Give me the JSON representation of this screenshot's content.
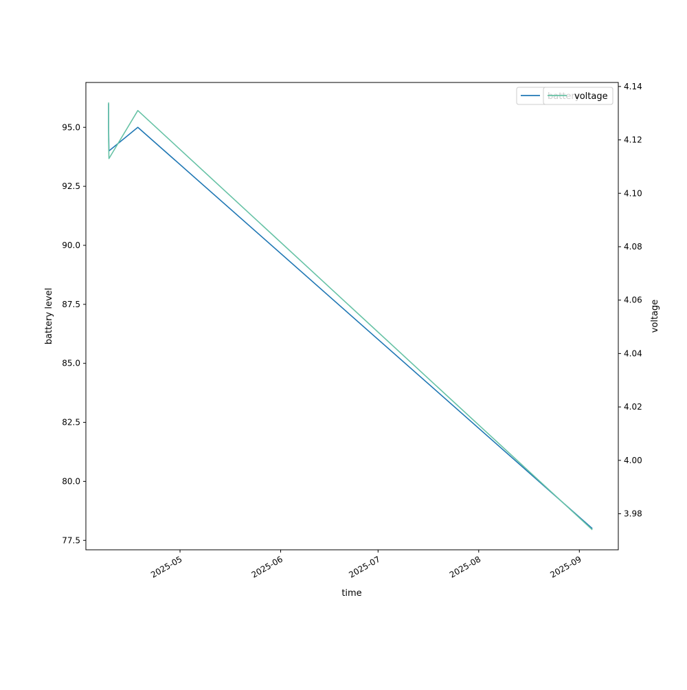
{
  "chart_data": {
    "type": "line",
    "xlabel": "time",
    "ylabel_left": "battery level",
    "ylabel_right": "voltage",
    "x_ticks": [
      "2025-05",
      "2025-06",
      "2025-07",
      "2025-08",
      "2025-09"
    ],
    "y_left_ticks": [
      77.5,
      80.0,
      82.5,
      85.0,
      87.5,
      90.0,
      92.5,
      95.0
    ],
    "y_right_ticks": [
      3.98,
      4.0,
      4.02,
      4.04,
      4.06,
      4.08,
      4.1,
      4.12,
      4.14
    ],
    "xlim": [
      "2025-04-02",
      "2025-09-13"
    ],
    "ylim_left": [
      77.1,
      96.9
    ],
    "ylim_right": [
      3.9665,
      4.1415
    ],
    "grid": false,
    "legend_placement": "top-right",
    "series": [
      {
        "name": "battery",
        "axis": "left",
        "color": "#1f77b4",
        "x": [
          "2025-04-09",
          "2025-04-09",
          "2025-04-09",
          "2025-04-18",
          "2025-09-05"
        ],
        "y": [
          96.0,
          95.0,
          94.0,
          95.0,
          78.0
        ]
      },
      {
        "name": "voltage",
        "axis": "right",
        "color": "#66c2a5",
        "x": [
          "2025-04-09",
          "2025-04-09",
          "2025-04-09",
          "2025-04-18",
          "2025-09-05"
        ],
        "y": [
          4.134,
          4.12,
          4.113,
          4.131,
          3.974
        ]
      }
    ]
  }
}
